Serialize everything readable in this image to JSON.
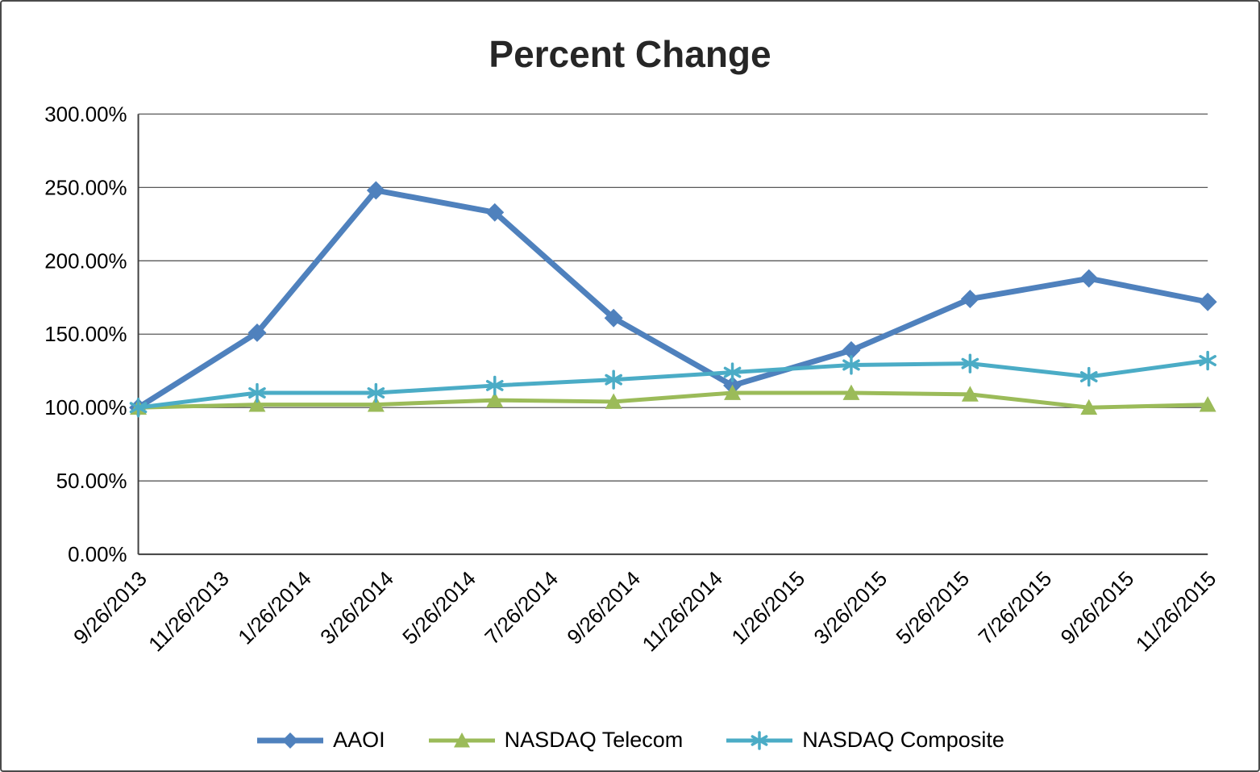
{
  "chart_data": {
    "type": "line",
    "title": "Percent Change",
    "x_tick_labels": [
      "9/26/2013",
      "11/26/2013",
      "1/26/2014",
      "3/26/2014",
      "5/26/2014",
      "7/26/2014",
      "9/26/2014",
      "11/26/2014",
      "1/26/2015",
      "3/26/2015",
      "5/26/2015",
      "7/26/2015",
      "9/26/2015",
      "11/26/2015"
    ],
    "y_tick_values": [
      0,
      50,
      100,
      150,
      200,
      250,
      300
    ],
    "y_tick_labels": [
      "0.00%",
      "50.00%",
      "100.00%",
      "150.00%",
      "200.00%",
      "250.00%",
      "300.00%"
    ],
    "ylim": [
      0,
      300
    ],
    "grid": true,
    "legend_position": "bottom",
    "series": [
      {
        "name": "AAOI",
        "color": "#4F81BD",
        "marker": "diamond",
        "values": [
          100,
          151,
          248,
          233,
          161,
          115,
          139,
          174,
          188,
          172
        ]
      },
      {
        "name": "NASDAQ Telecom",
        "color": "#9BBB59",
        "marker": "triangle",
        "values": [
          100,
          102,
          102,
          105,
          104,
          110,
          110,
          109,
          100,
          102
        ]
      },
      {
        "name": "NASDAQ Composite",
        "color": "#4BACC6",
        "marker": "asterisk",
        "values": [
          100,
          110,
          110,
          115,
          119,
          124,
          129,
          130,
          121,
          132
        ]
      }
    ]
  },
  "colors": {
    "gridline": "#595959",
    "axis": "#404040",
    "title": "#262626",
    "text": "#000000",
    "background": "#FFFFFF",
    "border": "#4A4A4A"
  }
}
